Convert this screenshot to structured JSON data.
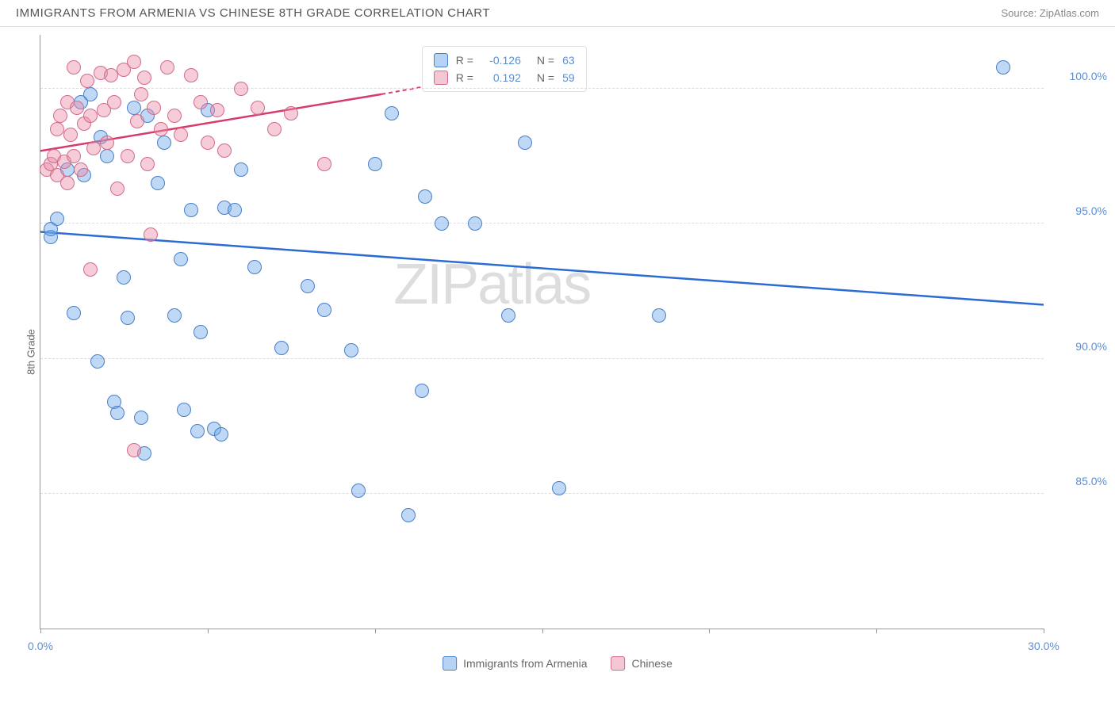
{
  "header": {
    "title": "IMMIGRANTS FROM ARMENIA VS CHINESE 8TH GRADE CORRELATION CHART",
    "source_prefix": "Source: ",
    "source_name": "ZipAtlas.com"
  },
  "chart": {
    "type": "scatter",
    "ylabel": "8th Grade",
    "watermark": "ZIPatlas",
    "xlim": [
      0,
      30
    ],
    "ylim": [
      80,
      102
    ],
    "xtick_positions": [
      0,
      30
    ],
    "xtick_labels": [
      "0.0%",
      "30.0%"
    ],
    "xtick_minor": [
      5,
      10,
      15,
      20,
      25
    ],
    "ytick_positions": [
      85,
      90,
      95,
      100
    ],
    "ytick_labels": [
      "85.0%",
      "90.0%",
      "95.0%",
      "100.0%"
    ],
    "grid_color": "#dddddd",
    "axis_color": "#999999",
    "background_color": "#ffffff",
    "label_color": "#5b8fd6",
    "marker_radius": 9,
    "marker_opacity": 0.55,
    "series": [
      {
        "name": "Immigrants from Armenia",
        "color": "#6fa8e8",
        "border": "#4a7fc9",
        "fill": "rgba(111,168,232,0.45)",
        "trend": {
          "x1": 0,
          "y1": 94.7,
          "x2": 30,
          "y2": 92.0,
          "color": "#2b6cd4",
          "width": 2.5,
          "dash": false
        },
        "points": [
          [
            0.3,
            94.5
          ],
          [
            0.3,
            94.8
          ],
          [
            0.5,
            95.2
          ],
          [
            0.8,
            97.0
          ],
          [
            1.0,
            91.7
          ],
          [
            1.2,
            99.5
          ],
          [
            1.3,
            96.8
          ],
          [
            1.5,
            99.8
          ],
          [
            1.7,
            89.9
          ],
          [
            1.8,
            98.2
          ],
          [
            2.0,
            97.5
          ],
          [
            2.2,
            88.4
          ],
          [
            2.3,
            88.0
          ],
          [
            2.5,
            93.0
          ],
          [
            2.6,
            91.5
          ],
          [
            2.8,
            99.3
          ],
          [
            3.0,
            87.8
          ],
          [
            3.1,
            86.5
          ],
          [
            3.2,
            99.0
          ],
          [
            3.5,
            96.5
          ],
          [
            3.7,
            98.0
          ],
          [
            4.0,
            91.6
          ],
          [
            4.2,
            93.7
          ],
          [
            4.3,
            88.1
          ],
          [
            4.5,
            95.5
          ],
          [
            4.7,
            87.3
          ],
          [
            4.8,
            91.0
          ],
          [
            5.0,
            99.2
          ],
          [
            5.2,
            87.4
          ],
          [
            5.4,
            87.2
          ],
          [
            5.5,
            95.6
          ],
          [
            5.8,
            95.5
          ],
          [
            6.0,
            97.0
          ],
          [
            6.4,
            93.4
          ],
          [
            7.2,
            90.4
          ],
          [
            8.0,
            92.7
          ],
          [
            8.5,
            91.8
          ],
          [
            9.3,
            90.3
          ],
          [
            9.5,
            85.1
          ],
          [
            10.0,
            97.2
          ],
          [
            10.5,
            99.1
          ],
          [
            11.0,
            84.2
          ],
          [
            11.4,
            88.8
          ],
          [
            11.5,
            96.0
          ],
          [
            12.0,
            95.0
          ],
          [
            13.0,
            95.0
          ],
          [
            14.0,
            91.6
          ],
          [
            14.5,
            98.0
          ],
          [
            15.5,
            85.2
          ],
          [
            18.5,
            91.6
          ],
          [
            28.8,
            100.8
          ]
        ]
      },
      {
        "name": "Chinese",
        "color": "#e88fa8",
        "border": "#d46a8a",
        "fill": "rgba(232,143,168,0.45)",
        "trend": {
          "x1": 0,
          "y1": 97.7,
          "x2": 10.2,
          "y2": 99.8,
          "color": "#d83a6a",
          "width": 2.5,
          "dash": false
        },
        "trend_ext": {
          "x1": 10.2,
          "y1": 99.8,
          "x2": 12,
          "y2": 100.2,
          "color": "#d83a6a",
          "width": 2,
          "dash": true
        },
        "points": [
          [
            0.2,
            97.0
          ],
          [
            0.3,
            97.2
          ],
          [
            0.4,
            97.5
          ],
          [
            0.5,
            98.5
          ],
          [
            0.5,
            96.8
          ],
          [
            0.6,
            99.0
          ],
          [
            0.7,
            97.3
          ],
          [
            0.8,
            99.5
          ],
          [
            0.8,
            96.5
          ],
          [
            0.9,
            98.3
          ],
          [
            1.0,
            100.8
          ],
          [
            1.0,
            97.5
          ],
          [
            1.1,
            99.3
          ],
          [
            1.2,
            97.0
          ],
          [
            1.3,
            98.7
          ],
          [
            1.4,
            100.3
          ],
          [
            1.5,
            99.0
          ],
          [
            1.5,
            93.3
          ],
          [
            1.6,
            97.8
          ],
          [
            1.8,
            100.6
          ],
          [
            1.9,
            99.2
          ],
          [
            2.0,
            98.0
          ],
          [
            2.1,
            100.5
          ],
          [
            2.2,
            99.5
          ],
          [
            2.3,
            96.3
          ],
          [
            2.5,
            100.7
          ],
          [
            2.6,
            97.5
          ],
          [
            2.8,
            101.0
          ],
          [
            2.9,
            98.8
          ],
          [
            3.0,
            99.8
          ],
          [
            3.1,
            100.4
          ],
          [
            3.2,
            97.2
          ],
          [
            3.3,
            94.6
          ],
          [
            3.4,
            99.3
          ],
          [
            3.6,
            98.5
          ],
          [
            3.8,
            100.8
          ],
          [
            4.0,
            99.0
          ],
          [
            4.2,
            98.3
          ],
          [
            4.5,
            100.5
          ],
          [
            4.8,
            99.5
          ],
          [
            5.0,
            98.0
          ],
          [
            5.3,
            99.2
          ],
          [
            5.5,
            97.7
          ],
          [
            6.0,
            100.0
          ],
          [
            6.5,
            99.3
          ],
          [
            7.0,
            98.5
          ],
          [
            7.5,
            99.1
          ],
          [
            8.5,
            97.2
          ],
          [
            2.8,
            86.6
          ]
        ]
      }
    ],
    "stats": [
      {
        "swatch_fill": "rgba(111,168,232,0.5)",
        "swatch_border": "#4a7fc9",
        "r_label": "R =",
        "r_value": "-0.126",
        "n_label": "N =",
        "n_value": "63"
      },
      {
        "swatch_fill": "rgba(232,143,168,0.5)",
        "swatch_border": "#d46a8a",
        "r_label": "R =",
        "r_value": "0.192",
        "n_label": "N =",
        "n_value": "59"
      }
    ],
    "legend": [
      {
        "swatch_fill": "rgba(111,168,232,0.5)",
        "swatch_border": "#4a7fc9",
        "label": "Immigrants from Armenia"
      },
      {
        "swatch_fill": "rgba(232,143,168,0.5)",
        "swatch_border": "#d46a8a",
        "label": "Chinese"
      }
    ]
  }
}
